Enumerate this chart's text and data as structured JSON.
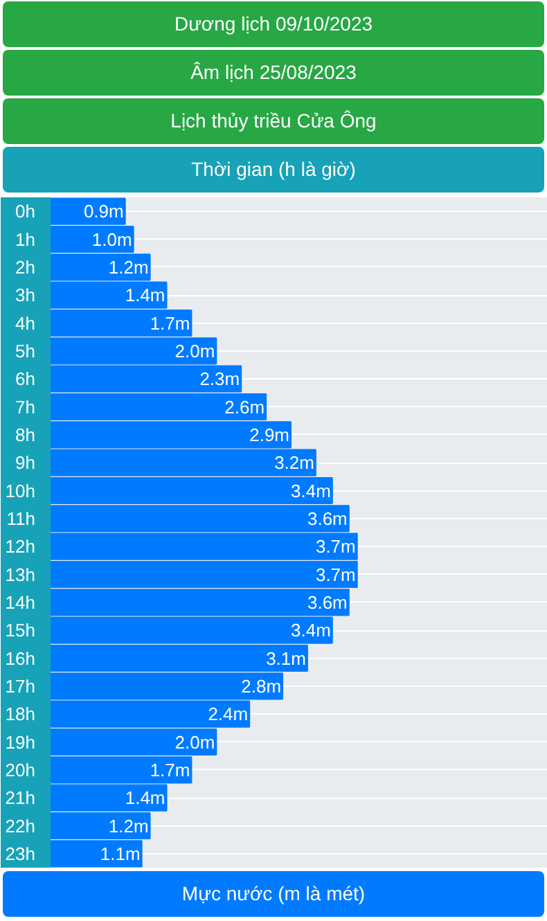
{
  "chart_data": {
    "type": "bar",
    "orientation": "horizontal",
    "title": "Lịch thủy triều Cửa Ông",
    "subtitle": "Dương lịch 09/10/2023",
    "annotations": [
      "Âm lịch 25/08/2023"
    ],
    "ylabel": "Thời gian (h là giờ)",
    "xlabel": "Mực nước (m là mét)",
    "categories": [
      "0h",
      "1h",
      "2h",
      "3h",
      "4h",
      "5h",
      "6h",
      "7h",
      "8h",
      "9h",
      "10h",
      "11h",
      "12h",
      "13h",
      "14h",
      "15h",
      "16h",
      "17h",
      "18h",
      "19h",
      "20h",
      "21h",
      "22h",
      "23h"
    ],
    "values": [
      0.9,
      1.0,
      1.2,
      1.4,
      1.7,
      2.0,
      2.3,
      2.6,
      2.9,
      3.2,
      3.4,
      3.6,
      3.7,
      3.7,
      3.6,
      3.4,
      3.1,
      2.8,
      2.4,
      2.0,
      1.7,
      1.4,
      1.2,
      1.1
    ],
    "color": "#007bff",
    "value_labels": [
      "0.9m",
      "1.0m",
      "1.2m",
      "1.4m",
      "1.7m",
      "2.0m",
      "2.3m",
      "2.6m",
      "2.9m",
      "3.2m",
      "3.4m",
      "3.6m",
      "3.7m",
      "3.7m",
      "3.6m",
      "3.4m",
      "3.1m",
      "2.8m",
      "2.4m",
      "2.0m",
      "1.7m",
      "1.4m",
      "1.2m",
      "1.1m"
    ],
    "xlim": [
      0,
      6
    ],
    "tick_labels": "y",
    "grid": "y"
  }
}
